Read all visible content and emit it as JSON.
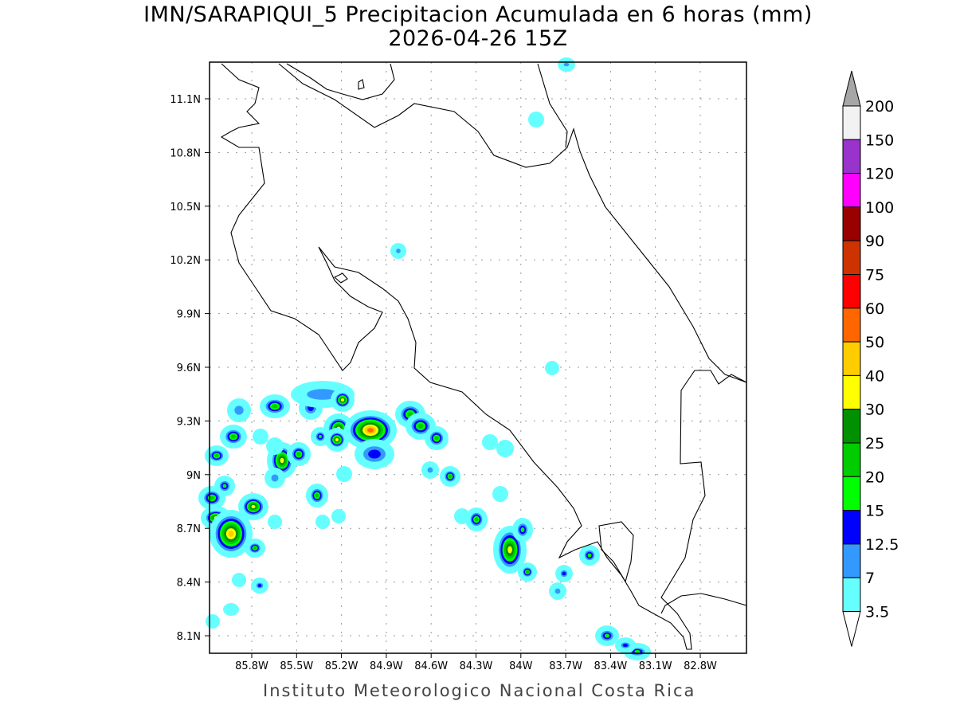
{
  "title": "IMN/SARAPIQUI_5 Precipitacion Acumulada en 6 horas (mm)",
  "subtitle": "2026-04-26 15Z",
  "footer": "Instituto Meteorologico Nacional Costa Rica",
  "map": {
    "lon_ticks": [
      "85.8W",
      "85.5W",
      "85.2W",
      "84.9W",
      "84.6W",
      "84.3W",
      "84W",
      "83.7W",
      "83.4W",
      "83.1W",
      "82.8W"
    ],
    "lat_ticks": [
      "11.1N",
      "10.8N",
      "10.5N",
      "10.2N",
      "9.9N",
      "9.6N",
      "9.3N",
      "9N",
      "8.7N",
      "8.4N",
      "8.1N"
    ]
  },
  "legend": {
    "levels": [
      "3.5",
      "7",
      "12.5",
      "15",
      "20",
      "25",
      "30",
      "40",
      "50",
      "60",
      "75",
      "90",
      "100",
      "120",
      "150",
      "200"
    ],
    "colors": [
      "#66ffff",
      "#3399ff",
      "#0000ff",
      "#00ff00",
      "#00cc00",
      "#009000",
      "#ffff00",
      "#ffcc00",
      "#ff6600",
      "#ff0000",
      "#cc3300",
      "#990000",
      "#ff00ff",
      "#9933cc",
      "#f2f2f2"
    ],
    "under_color": "#ffffff",
    "over_color": "#a6a6a6"
  }
}
